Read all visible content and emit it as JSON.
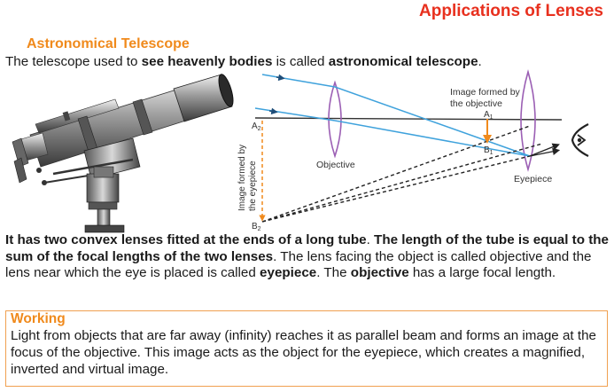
{
  "header": {
    "title": "Applications of Lenses"
  },
  "section": {
    "title": "Astronomical Telescope"
  },
  "intro": {
    "part1": "The telescope used to ",
    "bold1": "see heavenly bodies",
    "part2": " is called ",
    "bold2": "astronomical telescope",
    "part3": "."
  },
  "diagram": {
    "image_by_objective_line1": "Image formed by",
    "image_by_objective_line2": "the objective",
    "label_A1": "A",
    "sub_A1": "1",
    "label_B1": "B",
    "sub_B1": "1",
    "label_A2": "A",
    "sub_A2": "2",
    "label_B2": "B",
    "sub_B2": "2",
    "objective_label": "Objective",
    "eyepiece_label": "Eyepiece",
    "image_by_eyepiece_line1": "Image formed by",
    "image_by_eyepiece_line2": "the eyepiece",
    "colors": {
      "ray": "#3fa2dc",
      "lens": "#9b5fb4",
      "image_arrow": "#f08a1c",
      "axis": "#333333"
    }
  },
  "description": {
    "bold1": "It has two convex lenses fitted at the ends of a long tube",
    "sep1": ". ",
    "bold2": "The length of the tube is equal to the sum of the focal lengths of the two lenses",
    "part3": ". The lens facing the object is called objective and the lens near which the eye is placed is called ",
    "bold3": "eyepiece",
    "part4": ". The ",
    "bold4": "objective",
    "part5": " has a large focal length."
  },
  "working": {
    "title": "Working",
    "text": "Light from objects that are far away (infinity) reaches it as parallel beam and forms an image at the focus of the objective. This image acts as the object for the eyepiece, which creates a magnified, inverted and virtual image."
  }
}
